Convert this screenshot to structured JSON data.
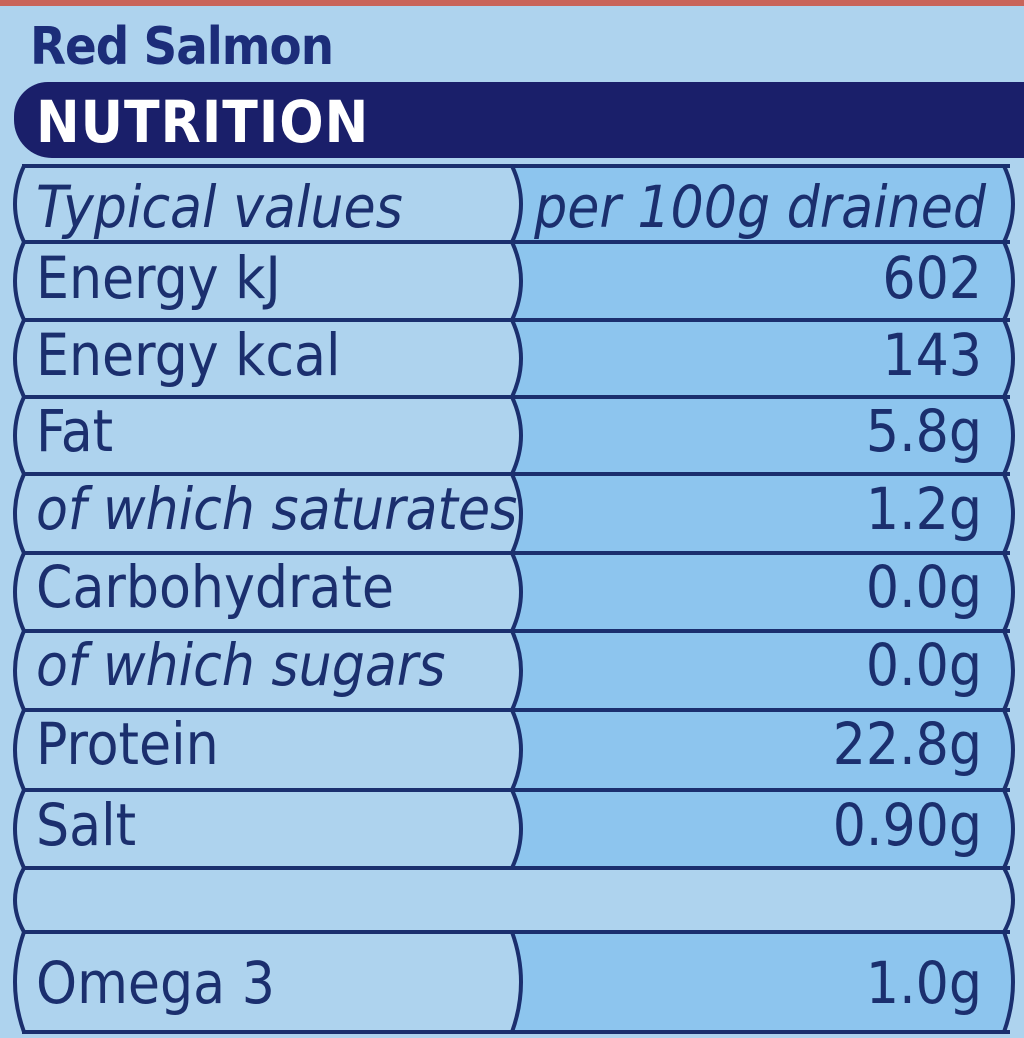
{
  "product_name": "Red Salmon",
  "section_title": "NUTRITION",
  "header": {
    "label": "Typical values",
    "value": "per 100g drained"
  },
  "rows": [
    {
      "label": "Energy kJ",
      "value": "602",
      "italic": false
    },
    {
      "label": "Energy kcal",
      "value": "143",
      "italic": false
    },
    {
      "label": "Fat",
      "value": "5.8g",
      "italic": false
    },
    {
      "label": "of which saturates",
      "value": "1.2g",
      "italic": true
    },
    {
      "label": "Carbohydrate",
      "value": "0.0g",
      "italic": false
    },
    {
      "label": "of which sugars",
      "value": "0.0g",
      "italic": true
    },
    {
      "label": "Protein",
      "value": "22.8g",
      "italic": false
    },
    {
      "label": "Salt",
      "value": "0.90g",
      "italic": false
    }
  ],
  "extra_row": {
    "label": "Omega 3",
    "value": "1.0g"
  },
  "colors": {
    "background": "#aed3ee",
    "value_column": "#8dc5ee",
    "banner": "#1a1f6a",
    "ink": "#1b2f6e"
  }
}
